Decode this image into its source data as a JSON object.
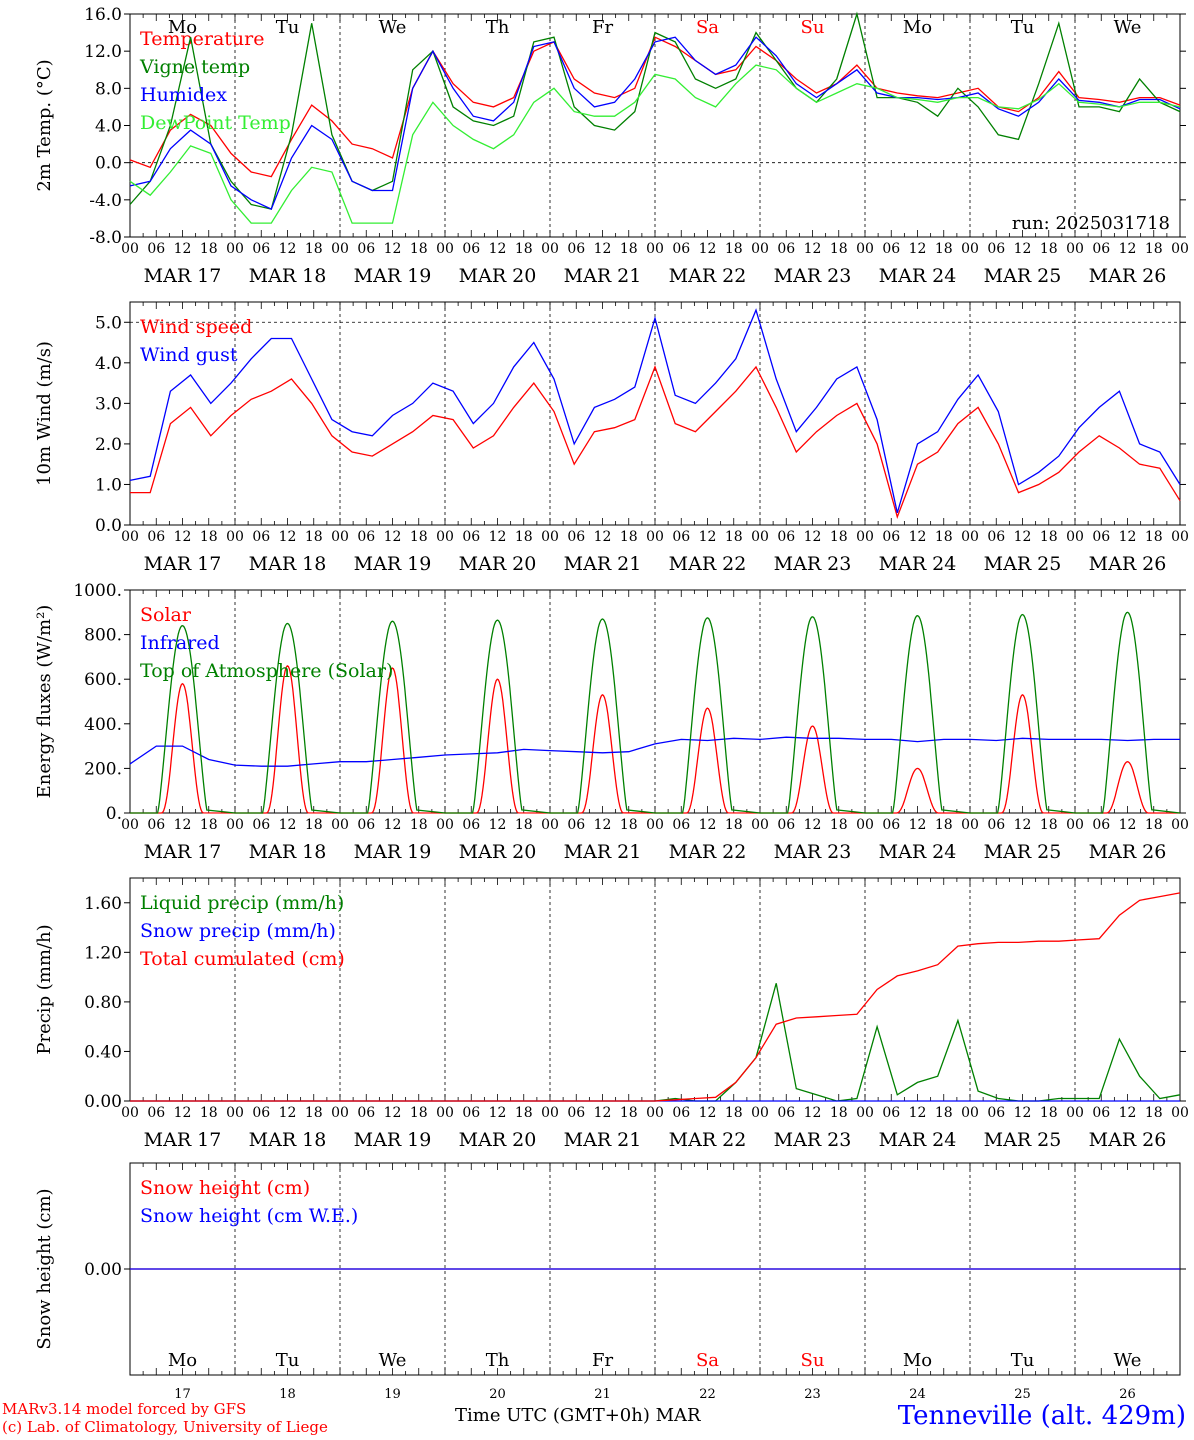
{
  "footer": {
    "model_line": "MARv3.14 model forced by GFS",
    "credit_line": "(c) Lab. of Climatology, University of Liege",
    "time_axis_label": "Time UTC (GMT+0h)",
    "month_label": "MAR",
    "station": "Tenneville (alt. 429m)"
  },
  "days": {
    "dates": [
      "MAR 17",
      "MAR 18",
      "MAR 19",
      "MAR 20",
      "MAR 21",
      "MAR 22",
      "MAR 23",
      "MAR 24",
      "MAR 25",
      "MAR 26"
    ],
    "day_numbers": [
      "17",
      "18",
      "19",
      "20",
      "21",
      "22",
      "23",
      "24",
      "25",
      "26"
    ],
    "weekday_abbrev": [
      "Mo",
      "Tu",
      "We",
      "Th",
      "Fr",
      "Sa",
      "Su",
      "Mo",
      "Tu",
      "We"
    ],
    "weekend_color": "#ff0000",
    "hour_ticks": [
      "00",
      "06",
      "12",
      "18"
    ],
    "end_tick": "00"
  },
  "chart_data": [
    {
      "type": "line",
      "ylabel": "2m Temp. (°C)",
      "ylim": [
        -8,
        16
      ],
      "yticks": [
        "-8.0",
        "-4.0",
        "0.0",
        "4.0",
        "8.0",
        "12.0",
        "16.0"
      ],
      "annotation": "run: 2025031718",
      "x_start": "2025-03-17 00:00",
      "x_step_hours": 6,
      "grid": "dashed daily",
      "series": [
        {
          "name": "Temperature",
          "color": "#ff0000",
          "values": [
            0.3,
            -0.5,
            3.5,
            5.2,
            4.0,
            1.0,
            -1.0,
            -1.5,
            2.5,
            6.2,
            4.5,
            2.0,
            1.5,
            0.5,
            8.0,
            12.0,
            8.5,
            6.5,
            6.0,
            7.0,
            12.0,
            13.0,
            9.0,
            7.5,
            7.0,
            8.0,
            13.5,
            12.5,
            11.0,
            9.5,
            10.0,
            12.5,
            11.0,
            9.0,
            7.5,
            8.5,
            10.5,
            8.0,
            7.5,
            7.2,
            7.0,
            7.5,
            8.0,
            6.0,
            5.5,
            7.0,
            9.8,
            7.0,
            6.8,
            6.5,
            7.0,
            7.0,
            6.2
          ]
        },
        {
          "name": "Vigne temp",
          "color": "#008000",
          "values": [
            -4.5,
            -2.0,
            4.0,
            13.5,
            2.0,
            -2.0,
            -4.5,
            -5.0,
            3.0,
            15.0,
            3.0,
            -2.0,
            -3.0,
            -2.0,
            10.0,
            12.0,
            6.0,
            4.5,
            4.0,
            5.0,
            13.0,
            13.5,
            6.0,
            4.0,
            3.5,
            5.5,
            14.0,
            13.0,
            9.0,
            8.0,
            9.0,
            14.0,
            11.0,
            8.0,
            6.5,
            9.0,
            16.0,
            7.0,
            7.0,
            6.5,
            5.0,
            8.0,
            6.0,
            3.0,
            2.5,
            8.5,
            15.0,
            6.0,
            6.0,
            5.5,
            9.0,
            6.5,
            5.5
          ]
        },
        {
          "name": "Humidex",
          "color": "#0000ff",
          "values": [
            -2.5,
            -2.0,
            1.5,
            3.5,
            2.0,
            -2.5,
            -4.0,
            -5.0,
            0.5,
            4.0,
            2.5,
            -2.0,
            -3.0,
            -3.0,
            8.0,
            12.0,
            8.0,
            5.0,
            4.5,
            6.5,
            12.5,
            13.0,
            8.0,
            6.0,
            6.5,
            9.0,
            13.0,
            13.5,
            11.0,
            9.5,
            10.5,
            13.5,
            11.5,
            8.5,
            7.0,
            8.5,
            10.0,
            7.5,
            7.0,
            7.0,
            6.8,
            7.0,
            7.5,
            5.8,
            5.0,
            6.5,
            9.0,
            6.7,
            6.5,
            6.0,
            6.8,
            6.8,
            5.8
          ]
        },
        {
          "name": "DewPoint Temp",
          "color": "#33ee33",
          "values": [
            -2.0,
            -3.5,
            -1.0,
            1.8,
            1.0,
            -4.0,
            -6.5,
            -6.5,
            -3.0,
            -0.5,
            -1.0,
            -6.5,
            -6.5,
            -6.5,
            3.0,
            6.5,
            4.0,
            2.5,
            1.5,
            3.0,
            6.5,
            8.0,
            5.5,
            5.0,
            5.0,
            6.5,
            9.5,
            9.0,
            7.0,
            6.0,
            8.5,
            10.5,
            10.0,
            8.0,
            6.5,
            7.5,
            8.5,
            8.0,
            7.0,
            6.8,
            6.5,
            7.0,
            7.0,
            6.0,
            5.8,
            6.8,
            8.5,
            6.5,
            6.3,
            6.0,
            6.5,
            6.5,
            6.0
          ]
        }
      ]
    },
    {
      "type": "line",
      "ylabel": "10m Wind (m/s)",
      "ylim": [
        0,
        5.5
      ],
      "yticks": [
        "0.0",
        "1.0",
        "2.0",
        "3.0",
        "4.0",
        "5.0"
      ],
      "ref_line": 5.0,
      "x_start": "2025-03-17 00:00",
      "x_step_hours": 6,
      "series": [
        {
          "name": "Wind speed",
          "color": "#ff0000",
          "values": [
            0.8,
            0.8,
            2.5,
            2.9,
            2.2,
            2.7,
            3.1,
            3.3,
            3.6,
            3.0,
            2.2,
            1.8,
            1.7,
            2.0,
            2.3,
            2.7,
            2.6,
            1.9,
            2.2,
            2.9,
            3.5,
            2.8,
            1.5,
            2.3,
            2.4,
            2.6,
            3.9,
            2.5,
            2.3,
            2.8,
            3.3,
            3.9,
            2.9,
            1.8,
            2.3,
            2.7,
            3.0,
            2.0,
            0.2,
            1.5,
            1.8,
            2.5,
            2.9,
            2.0,
            0.8,
            1.0,
            1.3,
            1.8,
            2.2,
            1.9,
            1.5,
            1.4,
            0.6
          ]
        },
        {
          "name": "Wind gust",
          "color": "#0000ff",
          "values": [
            1.1,
            1.2,
            3.3,
            3.7,
            3.0,
            3.5,
            4.1,
            4.6,
            4.6,
            3.6,
            2.6,
            2.3,
            2.2,
            2.7,
            3.0,
            3.5,
            3.3,
            2.5,
            3.0,
            3.9,
            4.5,
            3.6,
            2.0,
            2.9,
            3.1,
            3.4,
            5.1,
            3.2,
            3.0,
            3.5,
            4.1,
            5.3,
            3.6,
            2.3,
            2.9,
            3.6,
            3.9,
            2.6,
            0.3,
            2.0,
            2.3,
            3.1,
            3.7,
            2.8,
            1.0,
            1.3,
            1.7,
            2.4,
            2.9,
            3.3,
            2.0,
            1.8,
            1.0
          ]
        }
      ]
    },
    {
      "type": "line",
      "ylabel": "Energy fluxes (W/m²)",
      "ylim": [
        0,
        1000
      ],
      "yticks": [
        "0.",
        "200.",
        "400.",
        "600.",
        "800.",
        "1000."
      ],
      "x_start": "2025-03-17 00:00",
      "series": [
        {
          "name": "Solar",
          "color": "#ff0000",
          "daily_peaks": [
            580,
            660,
            650,
            600,
            530,
            470,
            390,
            200,
            530,
            230
          ]
        },
        {
          "name": "Infrared",
          "color": "#0000ff",
          "values": [
            220,
            300,
            300,
            240,
            215,
            210,
            210,
            220,
            230,
            230,
            240,
            250,
            260,
            265,
            270,
            285,
            280,
            275,
            270,
            275,
            310,
            330,
            325,
            335,
            330,
            340,
            335,
            335,
            330,
            330,
            320,
            330,
            330,
            325,
            335,
            330,
            330,
            330,
            325,
            330,
            330
          ]
        },
        {
          "name": "Top of Atmosphere (Solar)",
          "color": "#008000",
          "daily_peaks": [
            840,
            850,
            860,
            865,
            870,
            875,
            880,
            885,
            890,
            900
          ]
        }
      ]
    },
    {
      "type": "line",
      "ylabel": "Precip (mm/h)",
      "ylim": [
        0,
        1.8
      ],
      "yticks": [
        "0.00",
        "0.40",
        "0.80",
        "1.20",
        "1.60"
      ],
      "x_start": "2025-03-17 00:00",
      "x_step_hours": 6,
      "series": [
        {
          "name": "Liquid precip (mm/h)",
          "color": "#008000",
          "values": [
            0,
            0,
            0,
            0,
            0,
            0,
            0,
            0,
            0,
            0,
            0,
            0,
            0,
            0,
            0,
            0,
            0,
            0,
            0,
            0,
            0,
            0,
            0,
            0,
            0,
            0,
            0,
            0.02,
            0,
            0,
            0.15,
            0.35,
            0.95,
            0.1,
            0.05,
            0,
            0.02,
            0.6,
            0.05,
            0.15,
            0.2,
            0.65,
            0.08,
            0.02,
            0,
            0,
            0.02,
            0.02,
            0.02,
            0.5,
            0.2,
            0.02,
            0.05
          ]
        },
        {
          "name": "Snow precip (mm/h)",
          "color": "#0000ff",
          "values": [
            0,
            0,
            0,
            0,
            0,
            0,
            0,
            0,
            0,
            0,
            0,
            0,
            0,
            0,
            0,
            0,
            0,
            0,
            0,
            0,
            0,
            0,
            0,
            0,
            0,
            0,
            0,
            0,
            0,
            0,
            0,
            0,
            0,
            0,
            0,
            0,
            0,
            0,
            0,
            0,
            0,
            0,
            0,
            0,
            0,
            0,
            0,
            0,
            0,
            0,
            0,
            0,
            0
          ]
        },
        {
          "name": "Total cumulated (cm)",
          "color": "#ff0000",
          "values": [
            0,
            0,
            0,
            0,
            0,
            0,
            0,
            0,
            0,
            0,
            0,
            0,
            0,
            0,
            0,
            0,
            0,
            0,
            0,
            0,
            0,
            0,
            0,
            0,
            0,
            0,
            0,
            0.01,
            0.02,
            0.03,
            0.15,
            0.35,
            0.62,
            0.67,
            0.68,
            0.69,
            0.7,
            0.9,
            1.01,
            1.05,
            1.1,
            1.25,
            1.27,
            1.28,
            1.28,
            1.29,
            1.29,
            1.3,
            1.31,
            1.5,
            1.62,
            1.65,
            1.68
          ]
        }
      ]
    },
    {
      "type": "line",
      "ylabel": "Snow height (cm)",
      "yticks": [
        "0.00"
      ],
      "x_start": "2025-03-17 00:00",
      "series": [
        {
          "name": "Snow height (cm)",
          "color": "#ff0000",
          "values": [
            0,
            0
          ]
        },
        {
          "name": "Snow height (cm W.E.)",
          "color": "#0000ff",
          "values": [
            0,
            0
          ]
        }
      ]
    }
  ]
}
